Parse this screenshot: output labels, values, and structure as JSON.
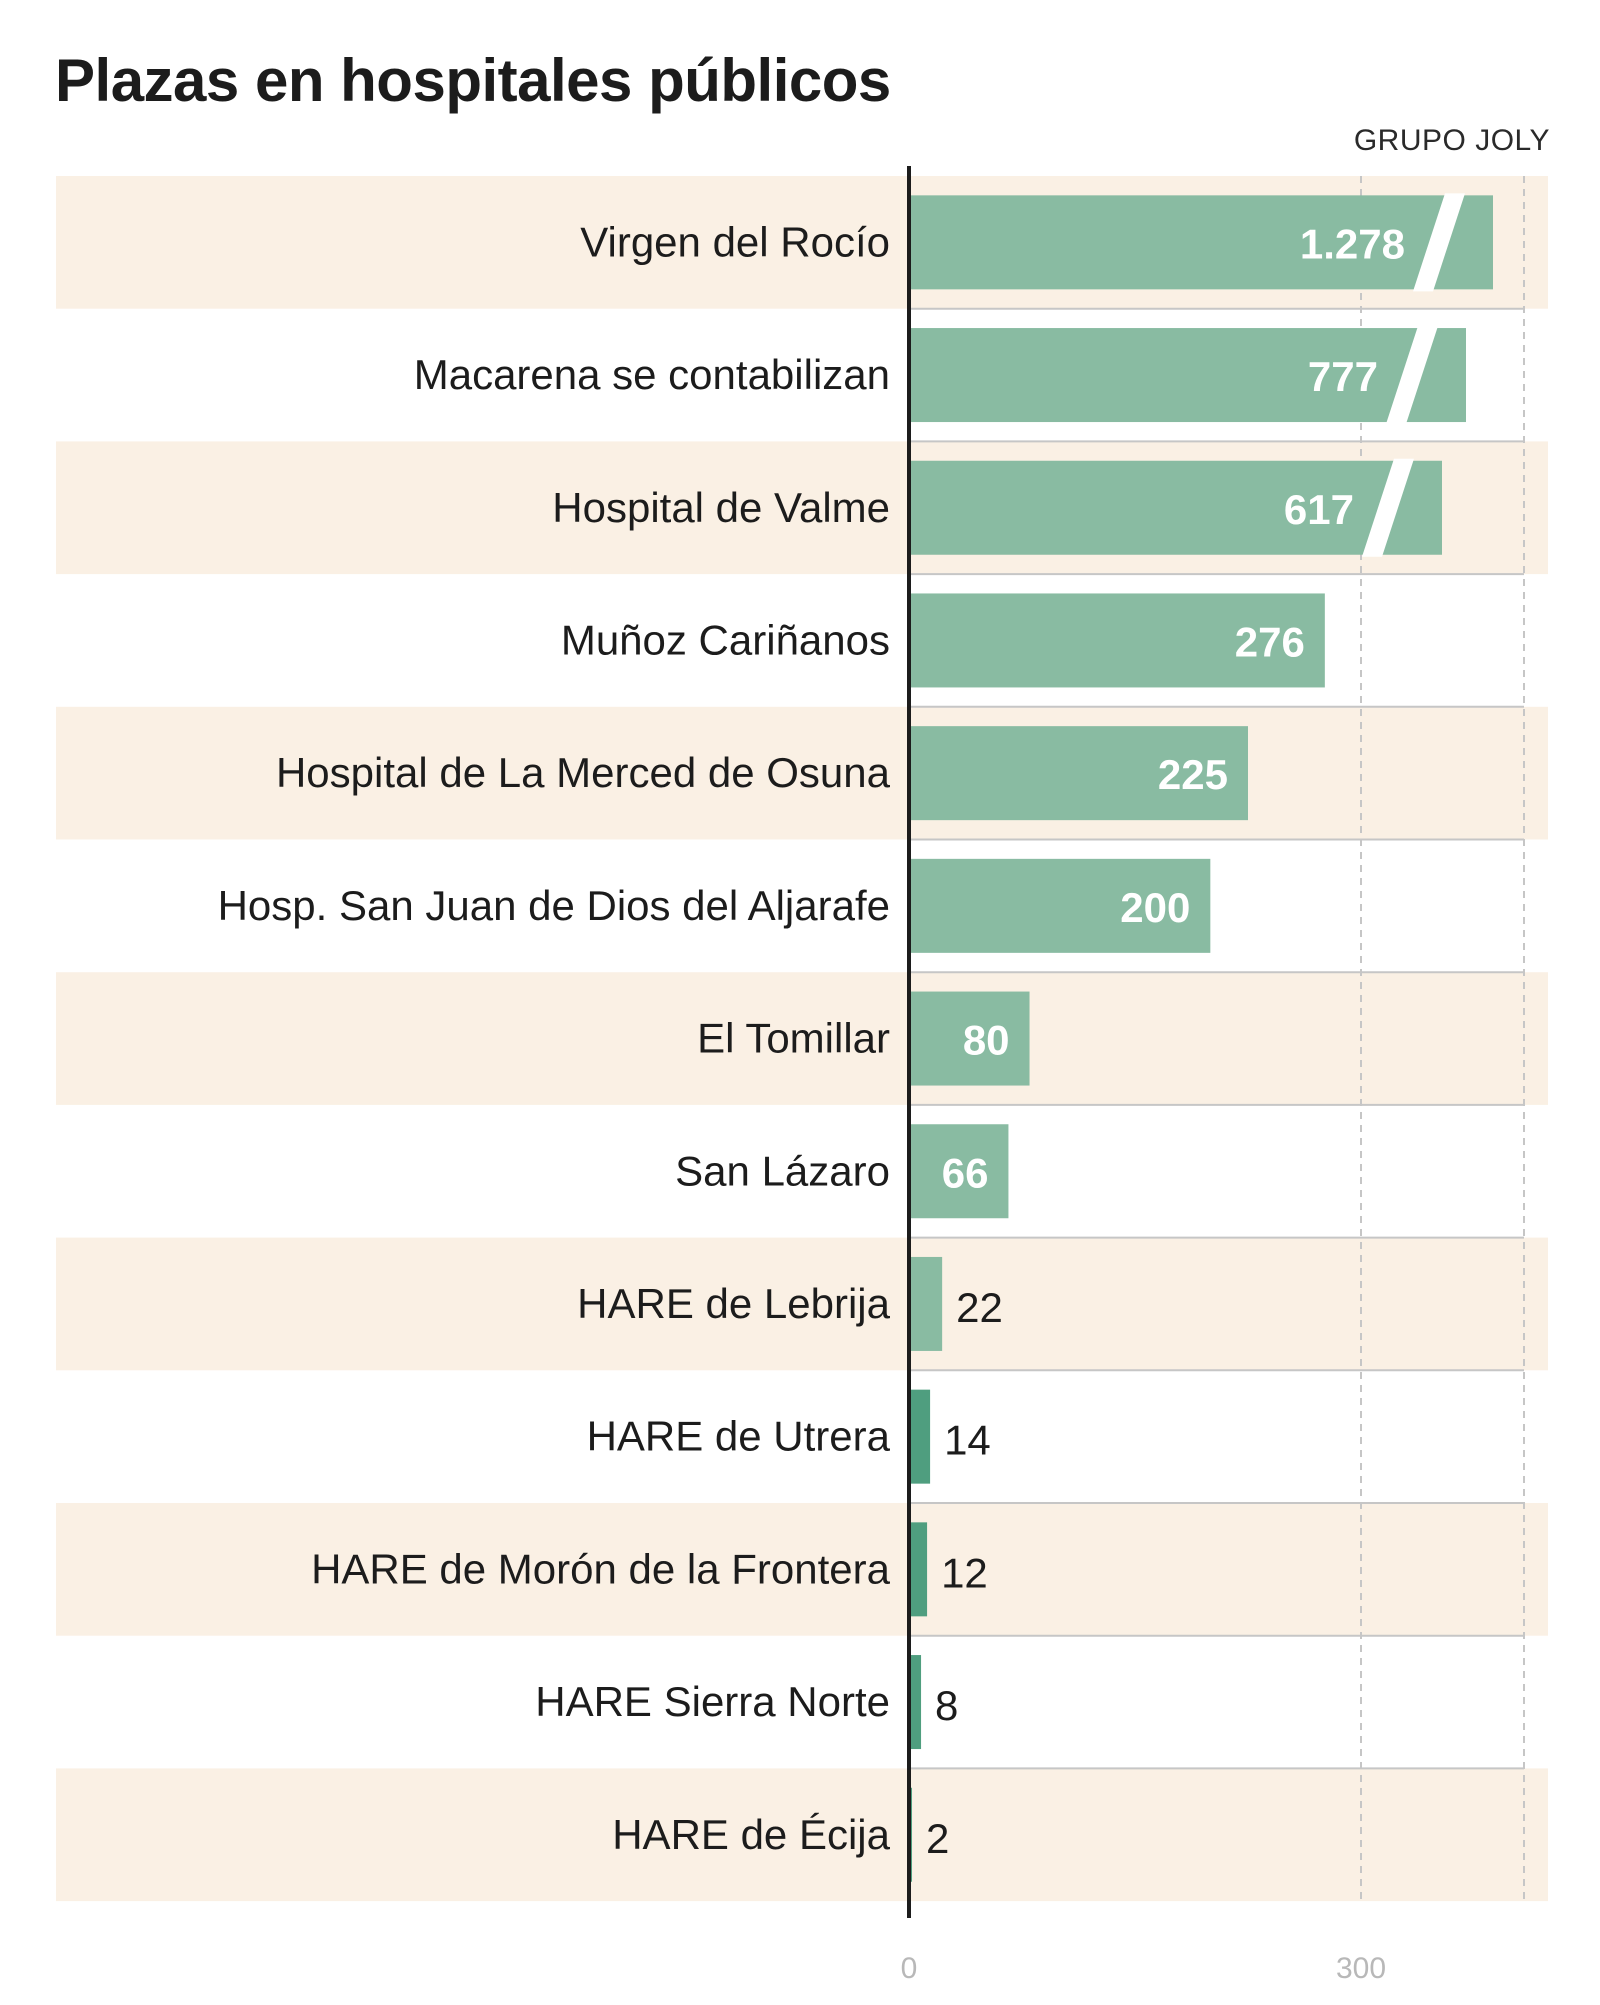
{
  "title": "Plazas en hospitales públicos",
  "source": "GRUPO JOLY",
  "colors": {
    "bar": "#89bba2",
    "bar_small": "#4f9e7f",
    "band": "#faf0e4",
    "axis": "#1c1c1c",
    "grid": "#c6c6c6"
  },
  "chart_data": {
    "type": "bar",
    "orientation": "horizontal",
    "title": "Plazas en hospitales públicos",
    "categories": [
      "Virgen del Rocío",
      "Macarena se contabilizan",
      "Hospital de Valme",
      "Muñoz Cariñanos",
      "Hospital de La Merced de Osuna",
      "Hosp. San Juan de Dios del Aljarafe",
      "El Tomillar",
      "San Lázaro",
      "HARE de Lebrija",
      "HARE de Utrera",
      "HARE de Morón de la Frontera",
      "HARE Sierra Norte",
      "HARE de Écija"
    ],
    "values": [
      1278,
      777,
      617,
      276,
      225,
      200,
      80,
      66,
      22,
      14,
      12,
      8,
      2
    ],
    "value_labels": [
      "1.278",
      "777",
      "617",
      "276",
      "225",
      "200",
      "80",
      "66",
      "22",
      "14",
      "12",
      "8",
      "2"
    ],
    "truncated": [
      true,
      true,
      true,
      false,
      false,
      false,
      false,
      false,
      false,
      false,
      false,
      false,
      false
    ],
    "xticks": [
      0,
      300
    ],
    "xtick_labels": [
      "0",
      "300"
    ],
    "grid": true,
    "alternating_row_bands": true
  }
}
